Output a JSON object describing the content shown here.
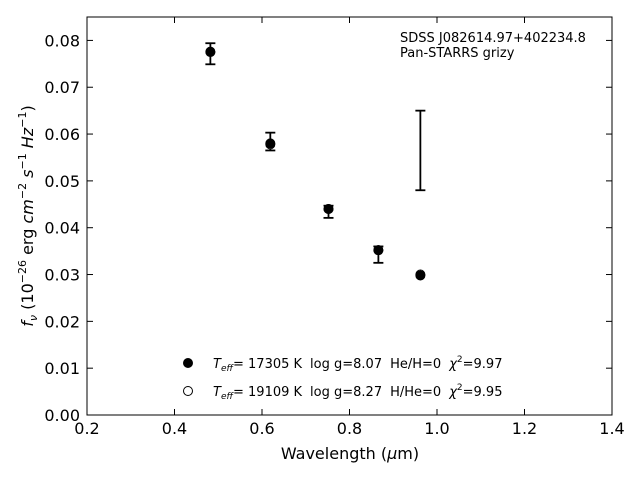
{
  "chart_data": {
    "type": "scatter",
    "title": "",
    "xlabel": "Wavelength (μm)",
    "ylabel": "fν (10⁻²⁶ erg cm⁻² s⁻¹ Hz⁻¹)",
    "xlim": [
      0.2,
      1.4
    ],
    "ylim": [
      0.0,
      0.085
    ],
    "xticks": [
      "0.2",
      "0.4",
      "0.6",
      "0.8",
      "1.0",
      "1.2",
      "1.4"
    ],
    "yticks": [
      "0.00",
      "0.01",
      "0.02",
      "0.03",
      "0.04",
      "0.05",
      "0.06",
      "0.07",
      "0.08"
    ],
    "grid": false,
    "annotation": {
      "line1": "SDSS J082614.97+402234.8",
      "line2": "Pan-STARRS grizy"
    },
    "observed": {
      "x": [
        0.482,
        0.619,
        0.752,
        0.866,
        0.962
      ],
      "y": [
        0.0772,
        0.0585,
        0.0437,
        0.0345,
        0.0565
      ],
      "yerr_low": [
        0.0023,
        0.002,
        0.0016,
        0.002,
        0.0085
      ],
      "yerr_high": [
        0.0022,
        0.0018,
        0.001,
        0.0015,
        0.0085
      ]
    },
    "series": [
      {
        "label": "Teff= 17305 K  log g=8.07  He/H=0  χ²=9.97",
        "marker": "filled-circle",
        "color": "#000000",
        "x": [
          0.482,
          0.619,
          0.752,
          0.866,
          0.962
        ],
        "y": [
          0.0775,
          0.058,
          0.044,
          0.0352,
          0.0298
        ]
      },
      {
        "label": "Teff= 19109 K  log g=8.27  H/He=0  χ²=9.95",
        "marker": "open-circle",
        "color": "#000000",
        "x": [
          0.482,
          0.619,
          0.752,
          0.866,
          0.962
        ],
        "y": [
          0.0776,
          0.0578,
          0.044,
          0.0352,
          0.03
        ]
      }
    ],
    "legend": {
      "placement": "bottom-center",
      "entries": [
        {
          "teff_prefix": "T",
          "teff_sub": "eff",
          "teff_value": "= 17305 K",
          "logg": "log g=8.07",
          "comp": "He/H=0",
          "chi": "χ",
          "chi_sup": "2",
          "chi_value": "=9.97"
        },
        {
          "teff_prefix": "T",
          "teff_sub": "eff",
          "teff_value": "= 19109 K",
          "logg": "log g=8.27",
          "comp": "H/He=0",
          "chi": "χ",
          "chi_sup": "2",
          "chi_value": "=9.95"
        }
      ]
    }
  }
}
